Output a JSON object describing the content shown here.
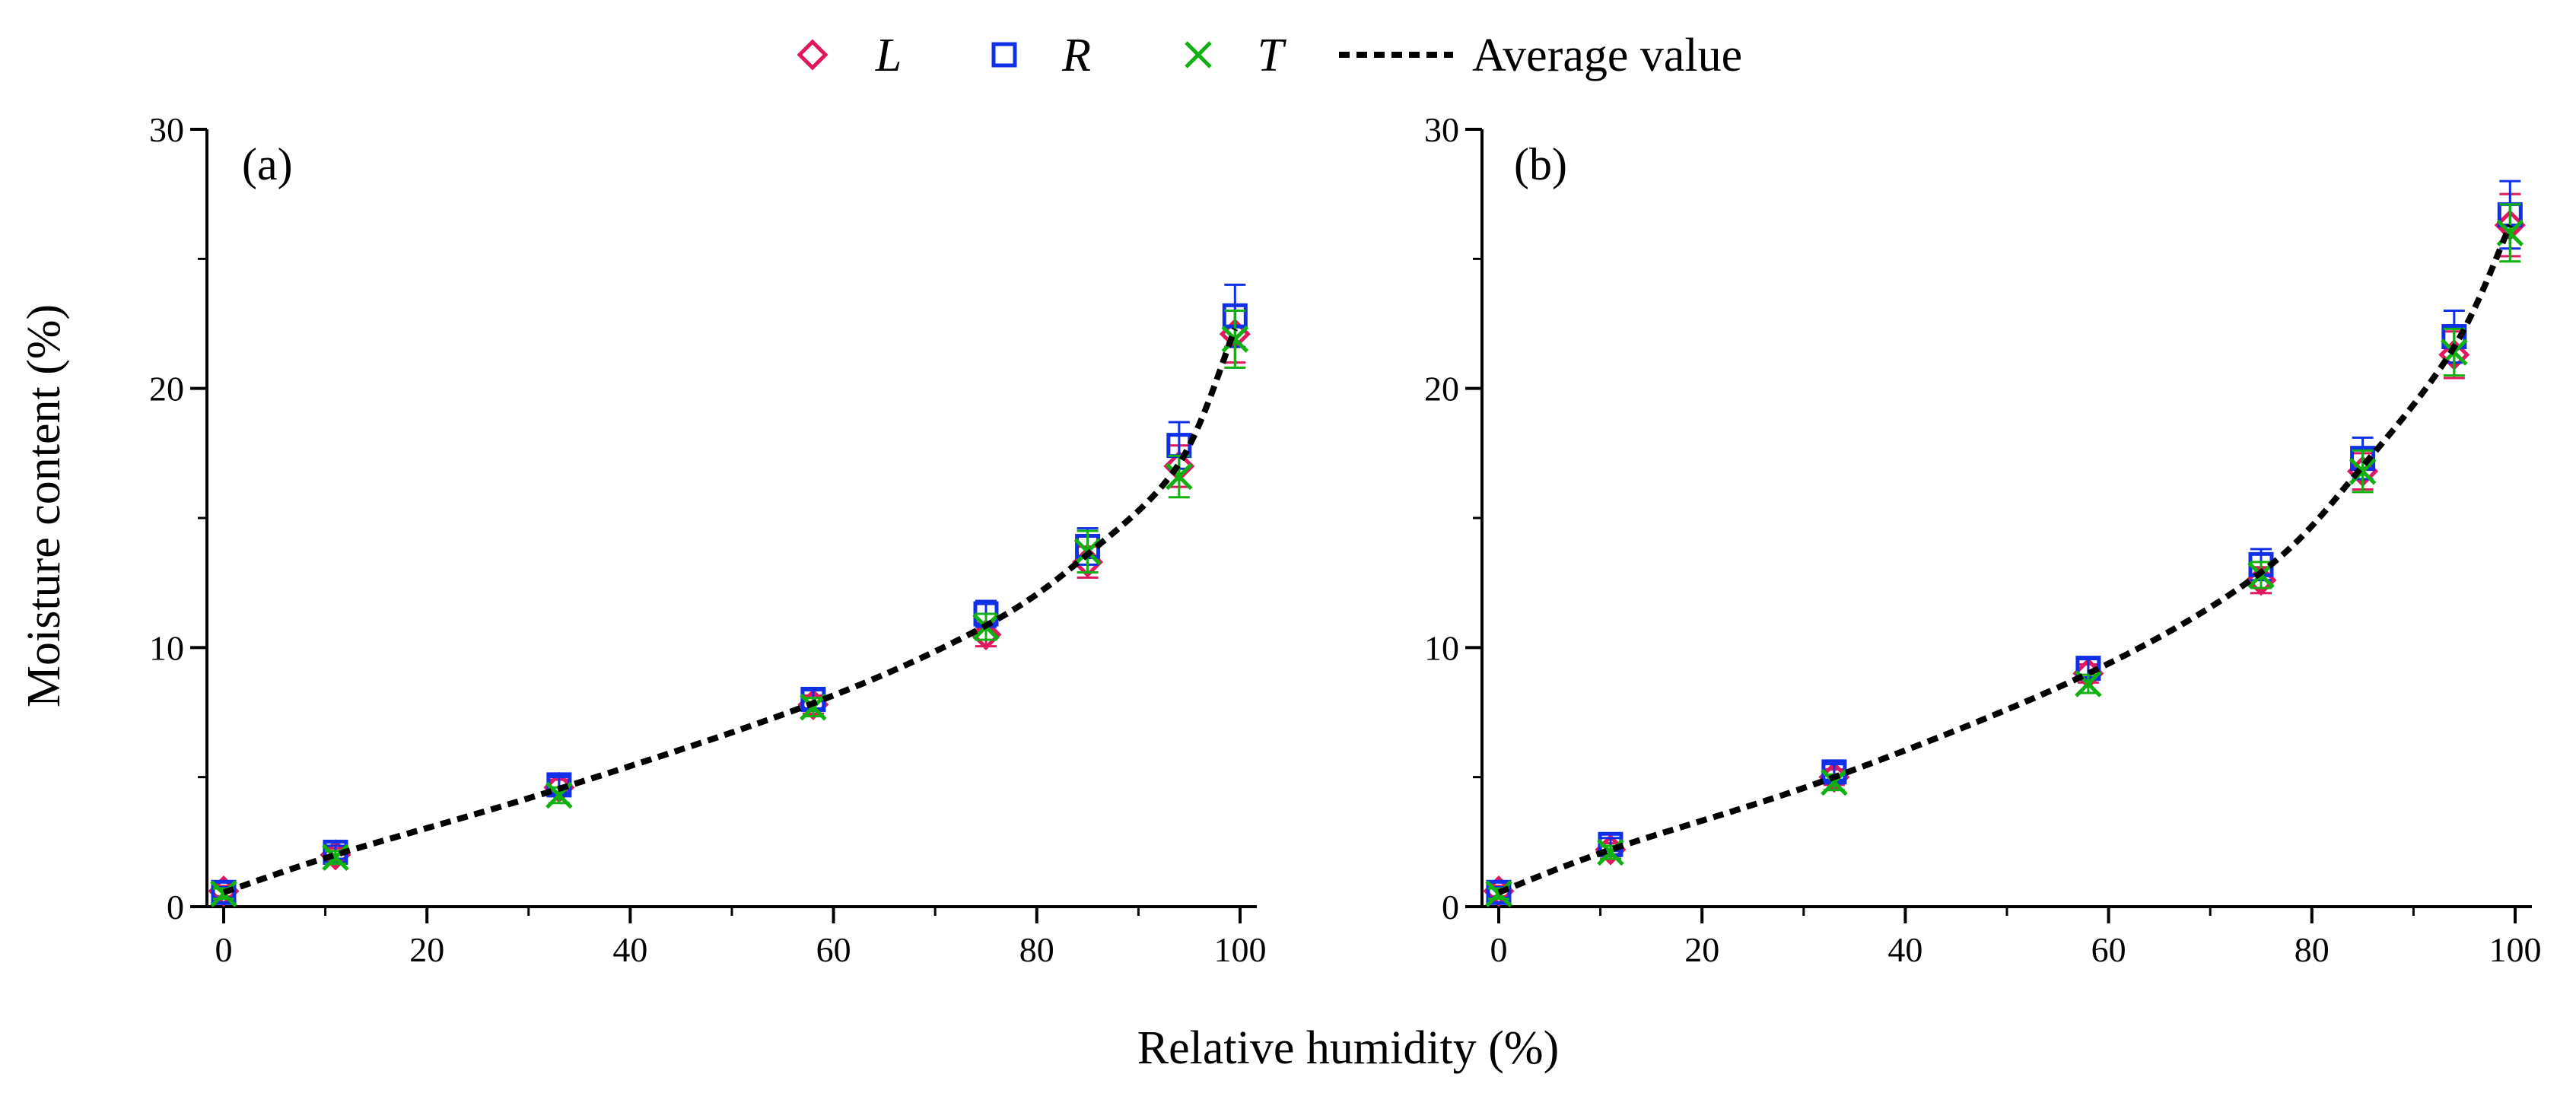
{
  "legend": {
    "items": [
      {
        "key": "L",
        "label": "L",
        "marker": "diamond",
        "color": "#e0185f"
      },
      {
        "key": "R",
        "label": "R",
        "marker": "square",
        "color": "#1030e8"
      },
      {
        "key": "T",
        "label": "T",
        "marker": "x",
        "color": "#10b010"
      },
      {
        "key": "avg",
        "label": "Average value",
        "marker": "dash",
        "color": "#000000"
      }
    ]
  },
  "x_axis_title": "Relative humidity (%)",
  "y_axis_title": "Moisture content (%)",
  "chart_data": [
    {
      "type": "scatter",
      "panel": "(a)",
      "xlim": [
        0,
        100
      ],
      "ylim": [
        0,
        30
      ],
      "xticks": [
        0,
        20,
        40,
        60,
        80,
        100
      ],
      "yticks": [
        0,
        10,
        20,
        30
      ],
      "x": [
        0,
        11,
        33,
        58,
        75,
        85,
        94,
        99.5
      ],
      "series": [
        {
          "name": "L",
          "values": [
            0.6,
            2.0,
            4.6,
            7.8,
            10.5,
            13.3,
            17.0,
            22.1
          ],
          "errors": [
            0.2,
            0.25,
            0.3,
            0.35,
            0.45,
            0.6,
            0.8,
            1.1
          ]
        },
        {
          "name": "R",
          "values": [
            0.55,
            2.1,
            4.7,
            8.0,
            11.3,
            13.9,
            17.8,
            22.8
          ],
          "errors": [
            0.2,
            0.25,
            0.3,
            0.35,
            0.5,
            0.7,
            0.9,
            1.2
          ]
        },
        {
          "name": "T",
          "values": [
            0.5,
            1.9,
            4.3,
            7.7,
            10.8,
            13.7,
            16.6,
            21.9
          ],
          "errors": [
            0.2,
            0.25,
            0.3,
            0.35,
            0.5,
            0.8,
            0.8,
            1.1
          ]
        },
        {
          "name": "Average value",
          "values": [
            0.55,
            2.0,
            4.55,
            7.85,
            10.85,
            13.6,
            17.1,
            22.3
          ]
        }
      ]
    },
    {
      "type": "scatter",
      "panel": "(b)",
      "xlim": [
        0,
        100
      ],
      "ylim": [
        0,
        30
      ],
      "xticks": [
        0,
        20,
        40,
        60,
        80,
        100
      ],
      "yticks": [
        0,
        10,
        20,
        30
      ],
      "x": [
        0,
        11,
        33,
        58,
        75,
        85,
        94,
        99.5
      ],
      "series": [
        {
          "name": "L",
          "values": [
            0.6,
            2.2,
            5.0,
            9.0,
            12.6,
            16.8,
            21.3,
            26.3
          ],
          "errors": [
            0.2,
            0.25,
            0.3,
            0.35,
            0.5,
            0.7,
            0.9,
            1.2
          ]
        },
        {
          "name": "R",
          "values": [
            0.55,
            2.4,
            5.2,
            9.2,
            13.2,
            17.3,
            22.0,
            26.7
          ],
          "errors": [
            0.2,
            0.25,
            0.3,
            0.35,
            0.6,
            0.8,
            1.0,
            1.3
          ]
        },
        {
          "name": "T",
          "values": [
            0.5,
            2.1,
            4.8,
            8.6,
            12.8,
            16.8,
            21.4,
            26.0
          ],
          "errors": [
            0.2,
            0.25,
            0.3,
            0.35,
            0.5,
            0.8,
            0.9,
            1.1
          ]
        },
        {
          "name": "Average value",
          "values": [
            0.55,
            2.2,
            5.0,
            9.0,
            12.9,
            17.0,
            21.6,
            26.3
          ]
        }
      ]
    }
  ]
}
